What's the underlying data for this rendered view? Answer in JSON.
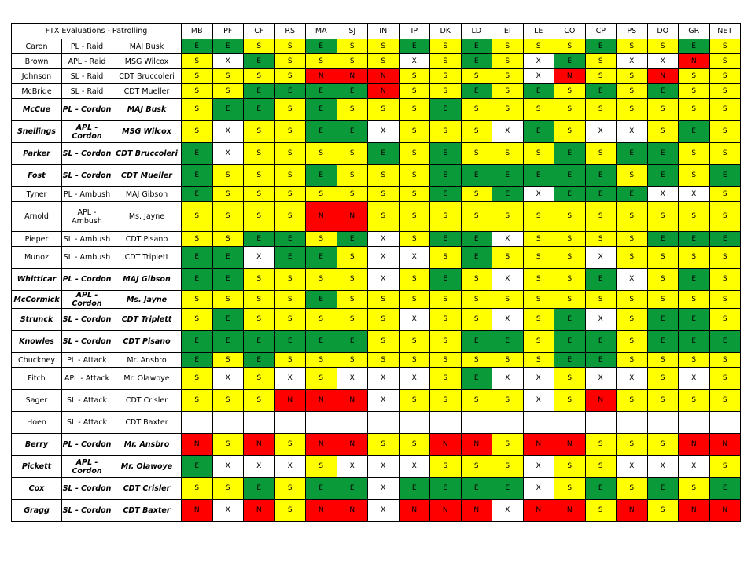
{
  "title": "FTX Evaluations - Patrolling",
  "columns": [
    "MB",
    "PF",
    "CF",
    "RS",
    "MA",
    "SJ",
    "IN",
    "IP",
    "DK",
    "LD",
    "EI",
    "LE",
    "CO",
    "CP",
    "PS",
    "DO",
    "GR",
    "NET"
  ],
  "colors": {
    "E": "#0b9a3a",
    "S": "#ffff00",
    "N": "#ff0000",
    "X": "#ffffff"
  },
  "rows": [
    {
      "name": "Caron",
      "role": "PL - Raid",
      "evaluator": "MAJ Busk",
      "bold": false,
      "scores": "EESSESSESESSSESSES"
    },
    {
      "name": "Brown",
      "role": "APL - Raid",
      "evaluator": "MSG Wilcox",
      "bold": false,
      "scores": "SXESSSSXSESXESXXNS"
    },
    {
      "name": "Johnson",
      "role": "SL - Raid",
      "evaluator": "CDT Bruccoleri",
      "bold": false,
      "scores": "SSSSNNNSSSSXNSSNSS"
    },
    {
      "name": "McBride",
      "role": "SL - Raid",
      "evaluator": "CDT Mueller",
      "bold": false,
      "scores": "SSEEEENSSESESESESS"
    },
    {
      "name": "McCue",
      "role": "PL - Cordon",
      "evaluator": "MAJ Busk",
      "bold": true,
      "scores": "SEESESSSESSSSSSSSS"
    },
    {
      "name": "Snellings",
      "role": "APL - Cordon",
      "evaluator": "MSG Wilcox",
      "bold": true,
      "scores": "SXSSEEXSSSXESXXSES"
    },
    {
      "name": "Parker",
      "role": "SL - Cordon",
      "evaluator": "CDT Bruccoleri",
      "bold": true,
      "scores": "EXSSSSESESSSESEESS"
    },
    {
      "name": "Fost",
      "role": "SL - Cordon",
      "evaluator": "CDT Mueller",
      "bold": true,
      "scores": "ESSSESSSEEEEEESESE"
    },
    {
      "name": "Tyner",
      "role": "PL - Ambush",
      "evaluator": "MAJ Gibson",
      "bold": false,
      "scores": "ESSSSSSSESEXEEEXXS"
    },
    {
      "name": "Arnold",
      "role": "APL - Ambush",
      "evaluator": "Ms. Jayne",
      "bold": false,
      "scores": "SSSSNNSSSSSSSSSSSS"
    },
    {
      "name": "Pieper",
      "role": "SL - Ambush",
      "evaluator": "CDT Pisano",
      "bold": false,
      "scores": "SSEESEXSEEXSSSSEEE"
    },
    {
      "name": "Munoz",
      "role": "SL - Ambush",
      "evaluator": "CDT Triplett",
      "bold": false,
      "scores": "EEXEESXXSESSSXSSSS"
    },
    {
      "name": "Whitticar",
      "role": "PL - Cordon",
      "evaluator": "MAJ Gibson",
      "bold": true,
      "scores": "EESSSSXSESXSSEXSES"
    },
    {
      "name": "McCormick",
      "role": "APL - Cordon",
      "evaluator": "Ms. Jayne",
      "bold": true,
      "scores": "SSSSESSSSSSSSSSSSS"
    },
    {
      "name": "Strunck",
      "role": "SL - Cordon",
      "evaluator": "CDT Triplett",
      "bold": true,
      "scores": "SESSSSSXSSXSEXSEES"
    },
    {
      "name": "Knowles",
      "role": "SL - Cordon",
      "evaluator": "CDT Pisano",
      "bold": true,
      "scores": "EEEEEESSSEESEESEEE"
    },
    {
      "name": "Chuckney",
      "role": "PL - Attack",
      "evaluator": "Mr. Ansbro",
      "bold": false,
      "scores": "ESESSSSSSSSSEESSSS"
    },
    {
      "name": "Fitch",
      "role": "APL - Attack",
      "evaluator": "Mr. Olawoye",
      "bold": false,
      "scores": "SXSXSXXXSEXXSXXSXS"
    },
    {
      "name": "Sager",
      "role": "SL - Attack",
      "evaluator": "CDT Crisler",
      "bold": false,
      "scores": "SSSNNNXSSSSXSNSSSS"
    },
    {
      "name": "Hoen",
      "role": "SL - Attack",
      "evaluator": "CDT Baxter",
      "bold": false,
      "scores": "                  "
    },
    {
      "name": "Berry",
      "role": "PL - Cordon",
      "evaluator": "Mr. Ansbro",
      "bold": true,
      "scores": "NSNSNNSSNNSNNSSSNN"
    },
    {
      "name": "Pickett",
      "role": "APL - Cordon",
      "evaluator": "Mr. Olawoye",
      "bold": true,
      "scores": "EXXXSXXXSSSXSSXXXS"
    },
    {
      "name": "Cox",
      "role": "SL - Cordon",
      "evaluator": "CDT Crisler",
      "bold": true,
      "scores": "SSESEEXEEEEXSESESE"
    },
    {
      "name": "Gragg",
      "role": "SL - Cordon",
      "evaluator": "CDT Baxter",
      "bold": true,
      "scores": "NXNSNNXNNNXNNSNSNN"
    }
  ]
}
